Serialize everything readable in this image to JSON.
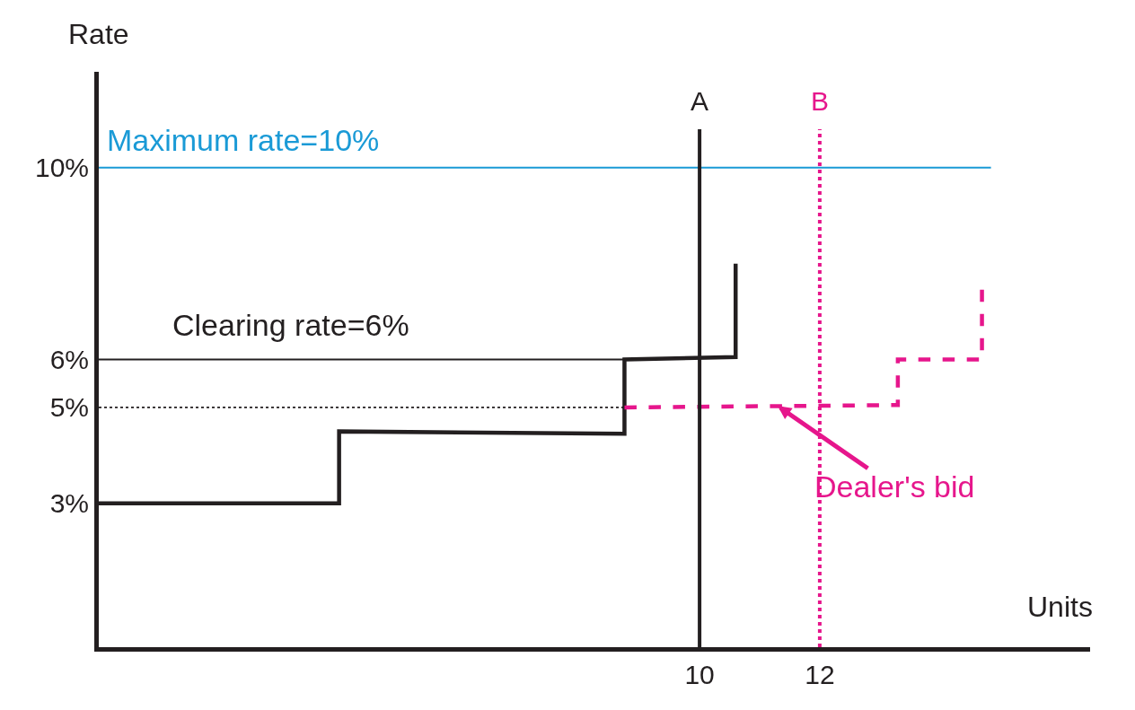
{
  "chart_data": {
    "type": "line",
    "xlabel": "Units",
    "ylabel": "Rate",
    "xlim": [
      0,
      16.5
    ],
    "ylim": [
      0,
      12
    ],
    "xticks": [
      10,
      12
    ],
    "yticks": [
      {
        "value": 3,
        "label": "3%"
      },
      {
        "value": 5,
        "label": "5%"
      },
      {
        "value": 6,
        "label": "6%"
      },
      {
        "value": 10,
        "label": "10%"
      }
    ],
    "marker": "none",
    "series": [
      {
        "color": "#231f20",
        "line_style": "solid",
        "x": [
          0,
          4,
          4,
          8.75,
          8.75,
          10.6,
          10.6
        ],
        "values": [
          3,
          3,
          4.5,
          4.45,
          6,
          6.05,
          8
        ]
      },
      {
        "color": "#231f20",
        "line_style": "solid",
        "x": [
          0,
          8.75
        ],
        "values": [
          6,
          6
        ]
      },
      {
        "color": "#231f20",
        "line_style": "dotted",
        "x": [
          0,
          8.75
        ],
        "values": [
          5,
          5
        ]
      },
      {
        "color": "#e6168c",
        "line_style": "dashed",
        "x": [
          8.75,
          13.3,
          13.3,
          14.7,
          14.7
        ],
        "values": [
          5,
          5.05,
          6,
          6,
          7.5
        ]
      }
    ],
    "ref_lines": [
      {
        "axis": "y",
        "value": 10,
        "label": "Maximum rate=10%",
        "color": "#1a9ad6",
        "line_style": "solid"
      },
      {
        "axis": "x",
        "value": 10,
        "label": "A",
        "color": "#231f20",
        "line_style": "solid"
      },
      {
        "axis": "x",
        "value": 12,
        "label": "B",
        "color": "#e6168c",
        "line_style": "dotted"
      }
    ],
    "annotations": [
      {
        "text": "Clearing rate=6%",
        "x": 1.2,
        "y": 6
      },
      {
        "text": "Dealer's bid",
        "x": 11.3,
        "y": 5.03
      }
    ]
  }
}
